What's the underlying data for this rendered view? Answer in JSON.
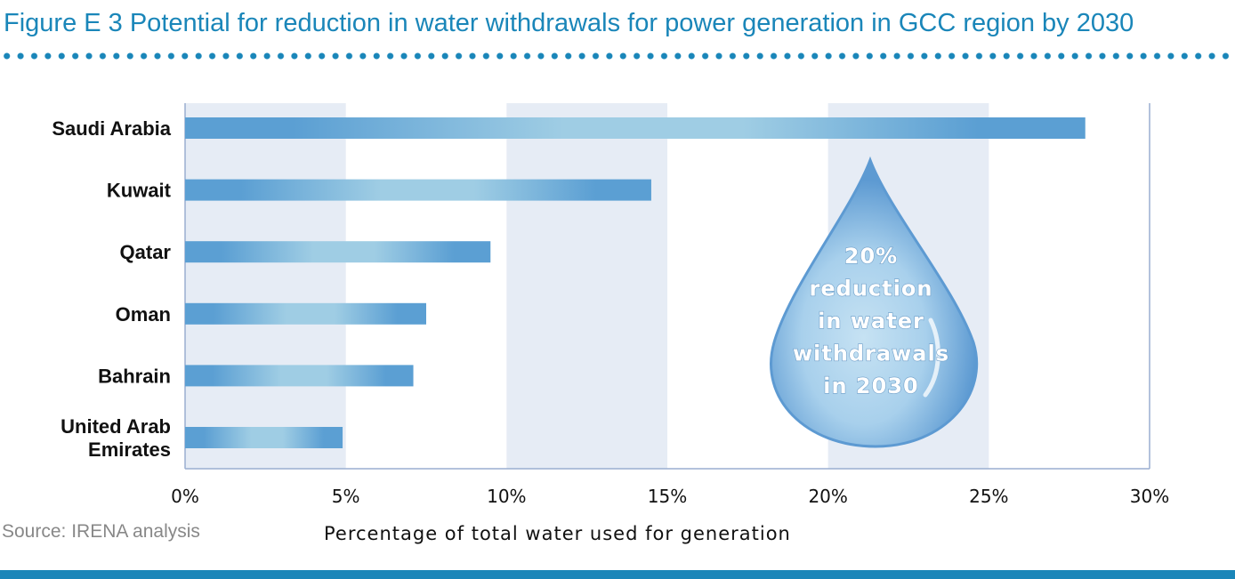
{
  "title": "Figure E 3 Potential for reduction in water withdrawals for power generation in GCC region by 2030",
  "source": "Source: IRENA analysis",
  "colors": {
    "accent": "#1a86b9",
    "bar_dark": "#5b9fd3",
    "bar_light": "#9fcde4",
    "band": "#e6ecf5",
    "drop_outer": "#5d9ad2",
    "drop_inner": "#c6e2f3"
  },
  "callout": {
    "lines": [
      "20%",
      "reduction",
      "in water",
      "withdrawals",
      "in 2030"
    ],
    "icon": "water-drop-icon"
  },
  "chart_data": {
    "type": "bar",
    "orientation": "horizontal",
    "categories": [
      "Saudi Arabia",
      "Kuwait",
      "Qatar",
      "Oman",
      "Bahrain",
      "United Arab Emirates"
    ],
    "category_lines": [
      [
        "Saudi Arabia"
      ],
      [
        "Kuwait"
      ],
      [
        "Qatar"
      ],
      [
        "Oman"
      ],
      [
        "Bahrain"
      ],
      [
        "United Arab",
        "Emirates"
      ]
    ],
    "values": [
      28,
      14.5,
      9.5,
      7.5,
      7.1,
      4.9
    ],
    "xlabel": "Percentage of total water used for generation",
    "ylabel": "",
    "xlim": [
      0,
      30
    ],
    "ticks": [
      "0%",
      "5%",
      "10%",
      "15%",
      "20%",
      "25%",
      "30%"
    ],
    "grid": "alternating vertical bands",
    "legend": "none"
  }
}
